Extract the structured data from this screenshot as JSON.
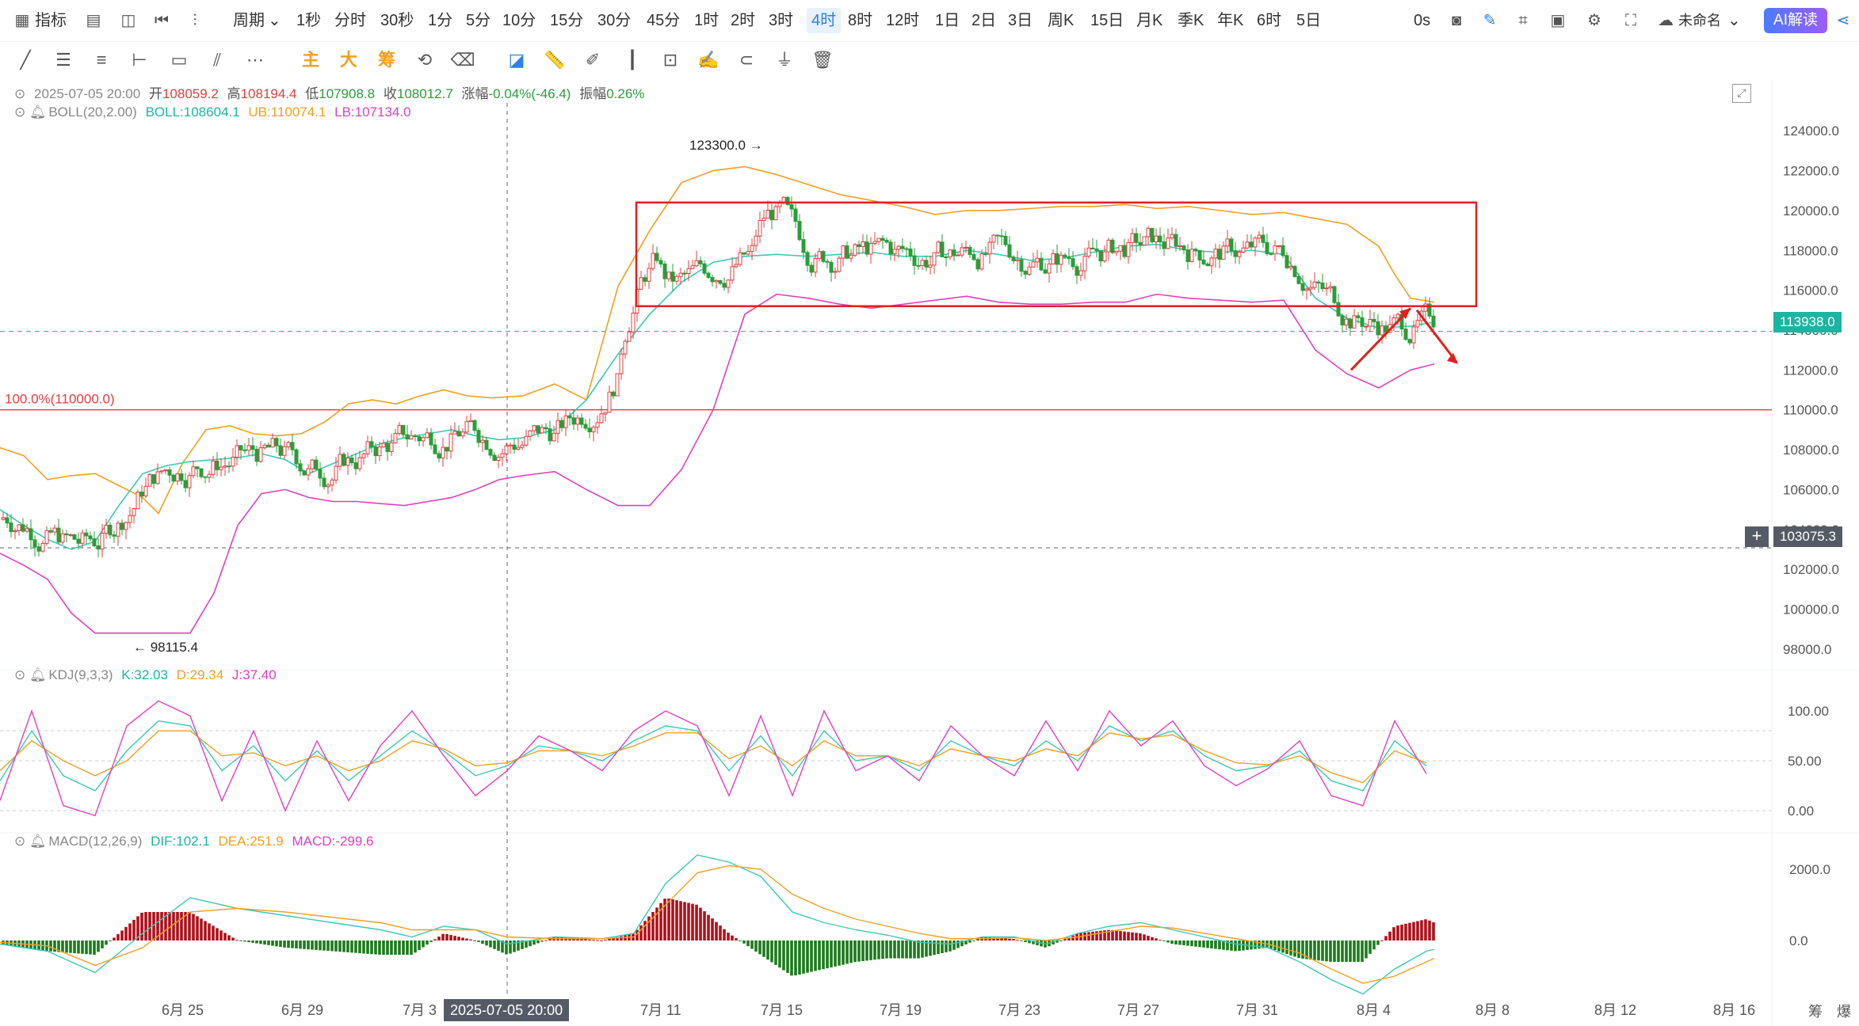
{
  "toolbar": {
    "indicator_label": "指标",
    "period_label": "周期",
    "periods": [
      "1秒",
      "分时",
      "30秒",
      "1分",
      "5分",
      "10分",
      "15分",
      "30分",
      "45分",
      "1时",
      "2时",
      "3时",
      "4时",
      "8时",
      "12时",
      "1日",
      "2日",
      "3日",
      "周K",
      "15日",
      "月K",
      "季K",
      "年K",
      "6时",
      "5日"
    ],
    "active_period": "4时",
    "right_value": "0s",
    "cloud_label": "未命名",
    "ai_label": "AI解读"
  },
  "drawbar": {
    "main_label": "主",
    "big_label": "大",
    "chip_label": "筹"
  },
  "ohlc": {
    "datetime": "2025-07-05 20:00",
    "open_label": "开",
    "open": "108059.2",
    "high_label": "高",
    "high": "108194.4",
    "low_label": "低",
    "low": "107908.8",
    "close_label": "收",
    "close": "108012.7",
    "change_label": "涨幅",
    "change": "-0.04%(-46.4)",
    "amp_label": "振幅",
    "amp": "0.26%"
  },
  "boll": {
    "name": "BOLL(20,2.00)",
    "mid": "BOLL:108604.1",
    "ub": "UB:110074.1",
    "lb": "LB:107134.0"
  },
  "kdj": {
    "name": "KDJ(9,3,3)",
    "k": "K:32.03",
    "d": "D:29.34",
    "j": "J:37.40"
  },
  "macd": {
    "name": "MACD(12,26,9)",
    "dif": "DIF:102.1",
    "dea": "DEA:251.9",
    "macd": "MACD:-299.6"
  },
  "price_axis": [
    "124000.0",
    "122000.0",
    "120000.0",
    "118000.0",
    "116000.0",
    "114000.0",
    "112000.0",
    "110000.0",
    "108000.0",
    "106000.0",
    "104000.0",
    "102000.0",
    "100000.0",
    "98000.0"
  ],
  "kdj_axis": [
    "100.00",
    "50.00",
    "0.00"
  ],
  "macd_axis": [
    "2000.0",
    "0.0"
  ],
  "date_axis": [
    "6月 25",
    "6月 29",
    "7月 3",
    "7月 11",
    "7月 15",
    "7月 19",
    "7月 23",
    "7月 27",
    "7月 31",
    "8月 4",
    "8月 8",
    "8月 12",
    "8月 16"
  ],
  "cursor_date": "2025-07-05 20:00",
  "current_price": "113938.0",
  "cursor_price": "103075.3",
  "fib_label": "100.0%(110000.0)",
  "high_mark": "123300.0",
  "low_mark": "98115.4",
  "bottom_right": [
    "筹",
    "爆"
  ],
  "colors": {
    "up": "#e04040",
    "down": "#2a9d3a",
    "boll_mid": "#3cc8b4",
    "boll_ub": "#f0a020",
    "boll_lb": "#e040c0",
    "accent": "#2f80ed",
    "current_tag": "#1bb5a3",
    "cursor_tag": "#555b66"
  },
  "chart_data": {
    "type": "candlestick",
    "y_range": [
      97000,
      125000
    ],
    "boll_mid_series": [
      [
        0,
        105000
      ],
      [
        30,
        104200
      ],
      [
        60,
        103500
      ],
      [
        90,
        103000
      ],
      [
        120,
        103400
      ],
      [
        150,
        105200
      ],
      [
        180,
        106800
      ],
      [
        210,
        107200
      ],
      [
        240,
        107400
      ],
      [
        270,
        107500
      ],
      [
        300,
        107600
      ],
      [
        330,
        107800
      ],
      [
        360,
        107500
      ],
      [
        390,
        106800
      ],
      [
        420,
        107300
      ],
      [
        450,
        107800
      ],
      [
        480,
        108300
      ],
      [
        510,
        108600
      ],
      [
        540,
        108800
      ],
      [
        570,
        109000
      ],
      [
        600,
        108700
      ],
      [
        630,
        108500
      ],
      [
        660,
        108600
      ],
      [
        700,
        109000
      ],
      [
        740,
        110500
      ],
      [
        780,
        112800
      ],
      [
        820,
        114800
      ],
      [
        860,
        116400
      ],
      [
        900,
        117400
      ],
      [
        940,
        117700
      ],
      [
        980,
        117800
      ],
      [
        1020,
        117700
      ],
      [
        1060,
        117800
      ],
      [
        1100,
        117900
      ],
      [
        1140,
        117700
      ],
      [
        1180,
        117700
      ],
      [
        1220,
        118000
      ],
      [
        1260,
        117800
      ],
      [
        1300,
        117500
      ],
      [
        1340,
        117600
      ],
      [
        1380,
        117900
      ],
      [
        1420,
        118200
      ],
      [
        1460,
        118300
      ],
      [
        1500,
        118000
      ],
      [
        1540,
        117900
      ],
      [
        1580,
        118000
      ],
      [
        1620,
        117800
      ],
      [
        1660,
        115600
      ],
      [
        1700,
        114600
      ],
      [
        1740,
        114100
      ],
      [
        1780,
        114200
      ],
      [
        1810,
        114400
      ]
    ],
    "boll_ub_series": [
      [
        0,
        108100
      ],
      [
        30,
        107700
      ],
      [
        60,
        106500
      ],
      [
        90,
        106700
      ],
      [
        120,
        106800
      ],
      [
        150,
        106200
      ],
      [
        180,
        105600
      ],
      [
        200,
        104800
      ],
      [
        230,
        107300
      ],
      [
        260,
        109000
      ],
      [
        290,
        109200
      ],
      [
        320,
        108800
      ],
      [
        350,
        108700
      ],
      [
        380,
        108800
      ],
      [
        410,
        109400
      ],
      [
        440,
        110300
      ],
      [
        470,
        110500
      ],
      [
        500,
        110300
      ],
      [
        530,
        110700
      ],
      [
        560,
        111000
      ],
      [
        590,
        110700
      ],
      [
        620,
        110600
      ],
      [
        660,
        110700
      ],
      [
        700,
        111300
      ],
      [
        740,
        110500
      ],
      [
        780,
        116200
      ],
      [
        820,
        119000
      ],
      [
        860,
        121400
      ],
      [
        900,
        122000
      ],
      [
        940,
        122200
      ],
      [
        980,
        121800
      ],
      [
        1020,
        121300
      ],
      [
        1060,
        120800
      ],
      [
        1100,
        120500
      ],
      [
        1140,
        120200
      ],
      [
        1180,
        119800
      ],
      [
        1220,
        120000
      ],
      [
        1260,
        120000
      ],
      [
        1300,
        120100
      ],
      [
        1340,
        120200
      ],
      [
        1380,
        120200
      ],
      [
        1420,
        120300
      ],
      [
        1460,
        120100
      ],
      [
        1500,
        120200
      ],
      [
        1540,
        120000
      ],
      [
        1580,
        119800
      ],
      [
        1620,
        119900
      ],
      [
        1660,
        119600
      ],
      [
        1700,
        119300
      ],
      [
        1740,
        118200
      ],
      [
        1760,
        116800
      ],
      [
        1780,
        115600
      ],
      [
        1810,
        115400
      ]
    ],
    "boll_lb_series": [
      [
        0,
        102800
      ],
      [
        30,
        102200
      ],
      [
        60,
        101500
      ],
      [
        90,
        99800
      ],
      [
        120,
        98800
      ],
      [
        150,
        98800
      ],
      [
        180,
        98800
      ],
      [
        210,
        98800
      ],
      [
        240,
        98800
      ],
      [
        270,
        100800
      ],
      [
        300,
        104200
      ],
      [
        330,
        105800
      ],
      [
        360,
        106000
      ],
      [
        390,
        105600
      ],
      [
        420,
        105400
      ],
      [
        450,
        105400
      ],
      [
        480,
        105300
      ],
      [
        510,
        105200
      ],
      [
        540,
        105400
      ],
      [
        570,
        105600
      ],
      [
        600,
        106000
      ],
      [
        630,
        106500
      ],
      [
        660,
        106700
      ],
      [
        700,
        106900
      ],
      [
        740,
        106000
      ],
      [
        780,
        105200
      ],
      [
        820,
        105200
      ],
      [
        860,
        107000
      ],
      [
        900,
        110000
      ],
      [
        940,
        114800
      ],
      [
        980,
        115800
      ],
      [
        1020,
        115600
      ],
      [
        1060,
        115300
      ],
      [
        1100,
        115100
      ],
      [
        1140,
        115300
      ],
      [
        1180,
        115500
      ],
      [
        1220,
        115700
      ],
      [
        1260,
        115400
      ],
      [
        1300,
        115300
      ],
      [
        1340,
        115300
      ],
      [
        1380,
        115400
      ],
      [
        1420,
        115400
      ],
      [
        1460,
        115800
      ],
      [
        1500,
        115600
      ],
      [
        1540,
        115500
      ],
      [
        1580,
        115400
      ],
      [
        1620,
        115500
      ],
      [
        1660,
        113000
      ],
      [
        1700,
        111800
      ],
      [
        1740,
        111100
      ],
      [
        1780,
        112000
      ],
      [
        1810,
        112300
      ]
    ],
    "kdj_k_series": [
      [
        0,
        30
      ],
      [
        40,
        80
      ],
      [
        80,
        35
      ],
      [
        120,
        20
      ],
      [
        160,
        60
      ],
      [
        200,
        90
      ],
      [
        240,
        85
      ],
      [
        280,
        40
      ],
      [
        320,
        65
      ],
      [
        360,
        30
      ],
      [
        400,
        60
      ],
      [
        440,
        30
      ],
      [
        480,
        55
      ],
      [
        520,
        80
      ],
      [
        560,
        60
      ],
      [
        600,
        35
      ],
      [
        640,
        45
      ],
      [
        680,
        65
      ],
      [
        720,
        60
      ],
      [
        760,
        50
      ],
      [
        800,
        70
      ],
      [
        840,
        85
      ],
      [
        880,
        80
      ],
      [
        920,
        40
      ],
      [
        960,
        75
      ],
      [
        1000,
        35
      ],
      [
        1040,
        80
      ],
      [
        1080,
        50
      ],
      [
        1120,
        55
      ],
      [
        1160,
        40
      ],
      [
        1200,
        70
      ],
      [
        1240,
        55
      ],
      [
        1280,
        45
      ],
      [
        1320,
        70
      ],
      [
        1360,
        50
      ],
      [
        1400,
        85
      ],
      [
        1440,
        70
      ],
      [
        1480,
        80
      ],
      [
        1520,
        55
      ],
      [
        1560,
        40
      ],
      [
        1600,
        45
      ],
      [
        1640,
        60
      ],
      [
        1680,
        30
      ],
      [
        1720,
        20
      ],
      [
        1760,
        70
      ],
      [
        1800,
        45
      ]
    ],
    "kdj_d_series": [
      [
        0,
        40
      ],
      [
        40,
        70
      ],
      [
        80,
        50
      ],
      [
        120,
        35
      ],
      [
        160,
        50
      ],
      [
        200,
        80
      ],
      [
        240,
        80
      ],
      [
        280,
        55
      ],
      [
        320,
        58
      ],
      [
        360,
        45
      ],
      [
        400,
        55
      ],
      [
        440,
        40
      ],
      [
        480,
        50
      ],
      [
        520,
        70
      ],
      [
        560,
        62
      ],
      [
        600,
        45
      ],
      [
        640,
        48
      ],
      [
        680,
        60
      ],
      [
        720,
        60
      ],
      [
        760,
        55
      ],
      [
        800,
        65
      ],
      [
        840,
        78
      ],
      [
        880,
        78
      ],
      [
        920,
        52
      ],
      [
        960,
        65
      ],
      [
        1000,
        45
      ],
      [
        1040,
        70
      ],
      [
        1080,
        55
      ],
      [
        1120,
        55
      ],
      [
        1160,
        45
      ],
      [
        1200,
        62
      ],
      [
        1240,
        55
      ],
      [
        1280,
        50
      ],
      [
        1320,
        62
      ],
      [
        1360,
        55
      ],
      [
        1400,
        78
      ],
      [
        1440,
        72
      ],
      [
        1480,
        76
      ],
      [
        1520,
        60
      ],
      [
        1560,
        48
      ],
      [
        1600,
        46
      ],
      [
        1640,
        55
      ],
      [
        1680,
        38
      ],
      [
        1720,
        28
      ],
      [
        1760,
        60
      ],
      [
        1800,
        48
      ]
    ],
    "kdj_j_series": [
      [
        0,
        10
      ],
      [
        40,
        100
      ],
      [
        80,
        5
      ],
      [
        120,
        -5
      ],
      [
        160,
        85
      ],
      [
        200,
        110
      ],
      [
        240,
        95
      ],
      [
        280,
        10
      ],
      [
        320,
        80
      ],
      [
        360,
        0
      ],
      [
        400,
        70
      ],
      [
        440,
        10
      ],
      [
        480,
        65
      ],
      [
        520,
        100
      ],
      [
        560,
        55
      ],
      [
        600,
        15
      ],
      [
        640,
        40
      ],
      [
        680,
        75
      ],
      [
        720,
        60
      ],
      [
        760,
        40
      ],
      [
        800,
        80
      ],
      [
        840,
        100
      ],
      [
        880,
        85
      ],
      [
        920,
        15
      ],
      [
        960,
        95
      ],
      [
        1000,
        15
      ],
      [
        1040,
        100
      ],
      [
        1080,
        40
      ],
      [
        1120,
        55
      ],
      [
        1160,
        30
      ],
      [
        1200,
        85
      ],
      [
        1240,
        55
      ],
      [
        1280,
        35
      ],
      [
        1320,
        90
      ],
      [
        1360,
        40
      ],
      [
        1400,
        100
      ],
      [
        1440,
        65
      ],
      [
        1480,
        90
      ],
      [
        1520,
        45
      ],
      [
        1560,
        25
      ],
      [
        1600,
        42
      ],
      [
        1640,
        70
      ],
      [
        1680,
        15
      ],
      [
        1720,
        5
      ],
      [
        1760,
        90
      ],
      [
        1800,
        37
      ]
    ],
    "macd_dif_series": [
      [
        0,
        -100
      ],
      [
        60,
        -300
      ],
      [
        120,
        -900
      ],
      [
        180,
        200
      ],
      [
        240,
        1200
      ],
      [
        300,
        900
      ],
      [
        360,
        700
      ],
      [
        420,
        500
      ],
      [
        480,
        300
      ],
      [
        520,
        100
      ],
      [
        560,
        400
      ],
      [
        600,
        300
      ],
      [
        640,
        -100
      ],
      [
        700,
        100
      ],
      [
        760,
        50
      ],
      [
        800,
        200
      ],
      [
        840,
        1600
      ],
      [
        880,
        2400
      ],
      [
        920,
        2200
      ],
      [
        960,
        1800
      ],
      [
        1000,
        800
      ],
      [
        1040,
        500
      ],
      [
        1080,
        300
      ],
      [
        1120,
        150
      ],
      [
        1160,
        -50
      ],
      [
        1200,
        -100
      ],
      [
        1240,
        100
      ],
      [
        1280,
        100
      ],
      [
        1320,
        -100
      ],
      [
        1360,
        200
      ],
      [
        1400,
        400
      ],
      [
        1440,
        500
      ],
      [
        1480,
        300
      ],
      [
        1520,
        100
      ],
      [
        1560,
        -100
      ],
      [
        1600,
        -200
      ],
      [
        1640,
        -600
      ],
      [
        1680,
        -1100
      ],
      [
        1720,
        -1500
      ],
      [
        1760,
        -800
      ],
      [
        1800,
        -300
      ],
      [
        1810,
        -250
      ]
    ],
    "macd_dea_series": [
      [
        0,
        -50
      ],
      [
        60,
        -150
      ],
      [
        120,
        -700
      ],
      [
        180,
        -200
      ],
      [
        240,
        800
      ],
      [
        300,
        900
      ],
      [
        360,
        800
      ],
      [
        420,
        650
      ],
      [
        480,
        500
      ],
      [
        520,
        300
      ],
      [
        560,
        300
      ],
      [
        600,
        300
      ],
      [
        640,
        100
      ],
      [
        700,
        50
      ],
      [
        760,
        50
      ],
      [
        800,
        100
      ],
      [
        840,
        1000
      ],
      [
        880,
        1900
      ],
      [
        920,
        2100
      ],
      [
        960,
        2000
      ],
      [
        1000,
        1300
      ],
      [
        1040,
        900
      ],
      [
        1080,
        600
      ],
      [
        1120,
        400
      ],
      [
        1160,
        200
      ],
      [
        1200,
        50
      ],
      [
        1240,
        50
      ],
      [
        1280,
        80
      ],
      [
        1320,
        0
      ],
      [
        1360,
        100
      ],
      [
        1400,
        250
      ],
      [
        1440,
        400
      ],
      [
        1480,
        350
      ],
      [
        1520,
        200
      ],
      [
        1560,
        50
      ],
      [
        1600,
        -100
      ],
      [
        1640,
        -350
      ],
      [
        1680,
        -800
      ],
      [
        1720,
        -1200
      ],
      [
        1760,
        -1000
      ],
      [
        1800,
        -600
      ],
      [
        1810,
        -500
      ]
    ]
  }
}
